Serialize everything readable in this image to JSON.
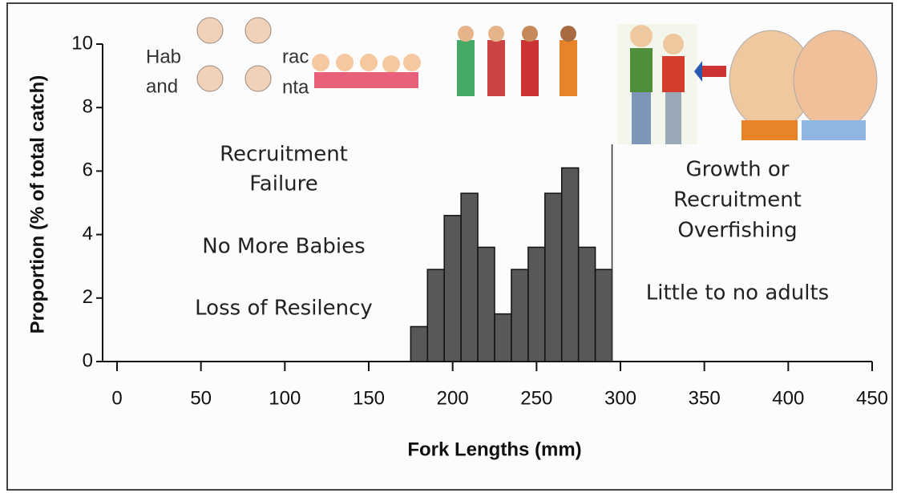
{
  "chart_data": {
    "type": "histogram",
    "bins": [
      175,
      185,
      195,
      205,
      215,
      225,
      235,
      245,
      255,
      265,
      275,
      285,
      295
    ],
    "values": [
      1.1,
      2.9,
      4.6,
      5.3,
      3.6,
      1.5,
      2.9,
      3.6,
      5.3,
      6.1,
      3.6,
      2.9
    ],
    "color": "#58585a",
    "xlim": [
      0,
      450
    ],
    "xticks": [
      0,
      50,
      100,
      150,
      200,
      250,
      300,
      350,
      400,
      450
    ],
    "ylim": [
      0,
      10
    ],
    "yticks": [
      0,
      2,
      4,
      6,
      8,
      10
    ],
    "xlabel": "Fork Lengths (mm)",
    "ylabel": "Proportion (% of total catch)",
    "annotations": [
      {
        "lines": [
          "Hab",
          "and"
        ]
      },
      {
        "lines": [
          "rac"
        ]
      },
      {
        "lines": [
          "nta"
        ]
      },
      {
        "lines": [
          "Recruitment",
          "Failure"
        ]
      },
      {
        "lines": [
          "No More Babies"
        ]
      },
      {
        "lines": [
          "Loss of Resilency"
        ]
      },
      {
        "lines": [
          "Growth or",
          "Recruitment",
          "Overfishing"
        ]
      },
      {
        "lines": [
          "Little to no adults"
        ]
      }
    ]
  }
}
